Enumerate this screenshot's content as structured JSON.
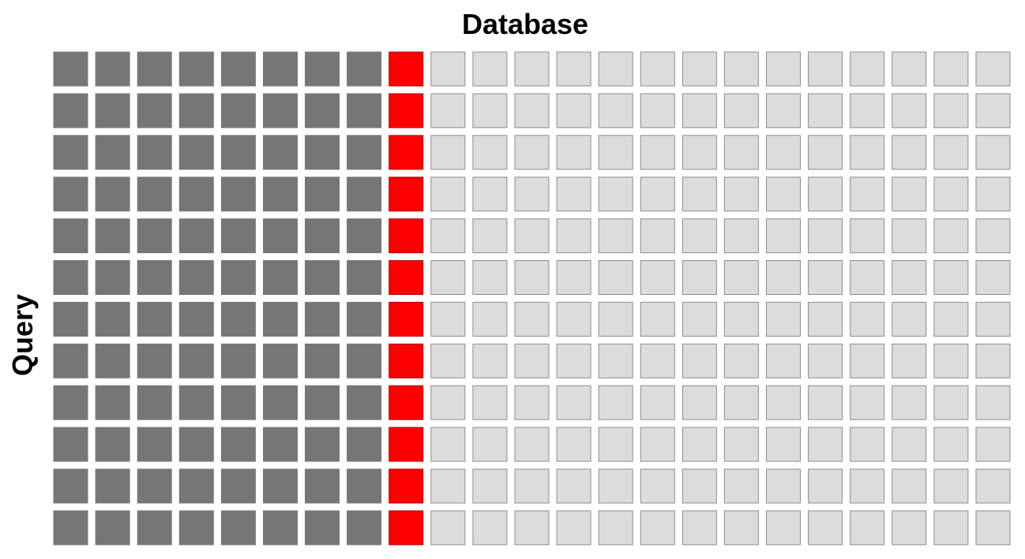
{
  "title": "Database",
  "y_label": "Query"
}
